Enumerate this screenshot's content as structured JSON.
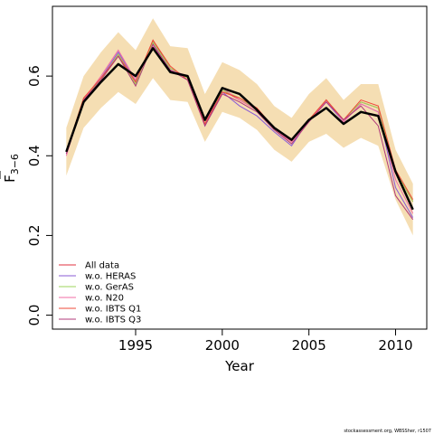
{
  "chart_data": {
    "type": "line",
    "xlabel": "Year",
    "ylabel_main": "F",
    "ylabel_sub": "3−6",
    "xlim": [
      1990.2,
      2011.8
    ],
    "ylim": [
      -0.035,
      0.775
    ],
    "xticks": [
      1995,
      2000,
      2005,
      2010
    ],
    "yticks": [
      0.0,
      0.2,
      0.4,
      0.6
    ],
    "ytick_labels": [
      "0.0",
      "0.2",
      "0.4",
      "0.6"
    ],
    "x": [
      1991,
      1992,
      1993,
      1994,
      1995,
      1996,
      1997,
      1998,
      1999,
      2000,
      2001,
      2002,
      2003,
      2004,
      2005,
      2006,
      2007,
      2008,
      2009,
      2010,
      2011
    ],
    "band": {
      "color": "#f5deb3",
      "lower": [
        0.35,
        0.47,
        0.52,
        0.56,
        0.53,
        0.595,
        0.54,
        0.535,
        0.435,
        0.51,
        0.495,
        0.465,
        0.415,
        0.385,
        0.435,
        0.455,
        0.42,
        0.445,
        0.425,
        0.29,
        0.2
      ],
      "upper": [
        0.47,
        0.6,
        0.66,
        0.71,
        0.665,
        0.745,
        0.675,
        0.67,
        0.555,
        0.635,
        0.615,
        0.58,
        0.525,
        0.495,
        0.555,
        0.595,
        0.54,
        0.58,
        0.58,
        0.415,
        0.33
      ]
    },
    "main_series": {
      "color": "#000000",
      "values": [
        0.41,
        0.535,
        0.585,
        0.63,
        0.6,
        0.67,
        0.61,
        0.6,
        0.49,
        0.57,
        0.555,
        0.515,
        0.47,
        0.44,
        0.49,
        0.52,
        0.48,
        0.51,
        0.5,
        0.36,
        0.265
      ]
    },
    "series": [
      {
        "name": "All data",
        "color": "#e0303f",
        "values": [
          0.41,
          0.54,
          0.59,
          0.655,
          0.585,
          0.69,
          0.62,
          0.595,
          0.48,
          0.565,
          0.54,
          0.515,
          0.47,
          0.435,
          0.49,
          0.54,
          0.49,
          0.535,
          0.52,
          0.36,
          0.285
        ]
      },
      {
        "name": "w.o. HERAS",
        "color": "#8a5bd6",
        "values": [
          0.405,
          0.54,
          0.595,
          0.66,
          0.59,
          0.68,
          0.615,
          0.6,
          0.475,
          0.56,
          0.525,
          0.5,
          0.46,
          0.425,
          0.49,
          0.535,
          0.485,
          0.53,
          0.51,
          0.32,
          0.245
        ]
      },
      {
        "name": "w.o. GerAS",
        "color": "#9cd65b",
        "values": [
          0.41,
          0.545,
          0.59,
          0.655,
          0.58,
          0.685,
          0.62,
          0.595,
          0.48,
          0.565,
          0.545,
          0.515,
          0.47,
          0.44,
          0.49,
          0.54,
          0.49,
          0.535,
          0.52,
          0.36,
          0.285
        ]
      },
      {
        "name": "w.o. N20",
        "color": "#f06da6",
        "values": [
          0.4,
          0.54,
          0.6,
          0.665,
          0.59,
          0.675,
          0.615,
          0.6,
          0.48,
          0.57,
          0.54,
          0.515,
          0.465,
          0.435,
          0.485,
          0.54,
          0.485,
          0.53,
          0.51,
          0.34,
          0.255
        ]
      },
      {
        "name": "w.o. IBTS Q1",
        "color": "#ef4a3a",
        "values": [
          0.41,
          0.545,
          0.595,
          0.65,
          0.585,
          0.69,
          0.625,
          0.59,
          0.48,
          0.56,
          0.545,
          0.52,
          0.47,
          0.44,
          0.49,
          0.54,
          0.49,
          0.54,
          0.525,
          0.365,
          0.29
        ]
      },
      {
        "name": "w.o. IBTS Q3",
        "color": "#b03a7a",
        "values": [
          0.405,
          0.54,
          0.59,
          0.65,
          0.575,
          0.68,
          0.615,
          0.59,
          0.475,
          0.555,
          0.535,
          0.51,
          0.465,
          0.43,
          0.485,
          0.535,
          0.49,
          0.525,
          0.475,
          0.3,
          0.24
        ]
      }
    ],
    "legend_position": "bottom-left",
    "credit": "stockassessment.org, WBSSher, r1507"
  }
}
